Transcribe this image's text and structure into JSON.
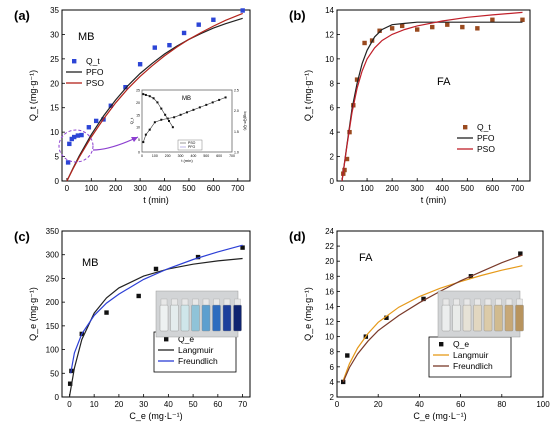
{
  "chart_data": [
    {
      "panel_label": "(a)",
      "annotation": "MB",
      "type": "scatter",
      "xlabel": "t (min)",
      "ylabel": "Q_t (mg·g⁻¹)",
      "xlim": [
        -20,
        750
      ],
      "ylim": [
        0,
        35
      ],
      "xticks": [
        0,
        100,
        200,
        300,
        400,
        500,
        600,
        700
      ],
      "yticks": [
        0,
        5,
        10,
        15,
        20,
        25,
        30,
        35
      ],
      "legend": {
        "position": "top-left",
        "entries": [
          "Q_t",
          "PFO",
          "PSO"
        ]
      },
      "series": [
        {
          "name": "Q_t",
          "kind": "points",
          "color": "#2c45d6",
          "x": [
            5,
            10,
            20,
            30,
            45,
            60,
            90,
            120,
            150,
            180,
            240,
            300,
            360,
            420,
            480,
            540,
            600,
            720
          ],
          "y": [
            3.8,
            7.6,
            8.6,
            9.0,
            9.3,
            9.4,
            11.0,
            12.3,
            12.6,
            15.4,
            19.2,
            23.9,
            27.3,
            27.8,
            30.3,
            32.0,
            33.0,
            34.9
          ]
        },
        {
          "name": "PFO",
          "kind": "line",
          "color": "#222222",
          "x": [
            0,
            25,
            50,
            100,
            150,
            200,
            250,
            300,
            350,
            400,
            450,
            500,
            550,
            600,
            650,
            720
          ],
          "y": [
            0,
            2.6,
            5.1,
            9.5,
            13.3,
            16.6,
            19.5,
            22.0,
            24.1,
            26.0,
            27.6,
            29.0,
            30.2,
            31.3,
            32.2,
            33.3
          ]
        },
        {
          "name": "PSO",
          "kind": "line",
          "color": "#b3231b",
          "x": [
            0,
            25,
            50,
            100,
            150,
            200,
            250,
            300,
            350,
            400,
            450,
            500,
            550,
            600,
            650,
            720
          ],
          "y": [
            0,
            2.5,
            4.8,
            9.0,
            12.7,
            16.0,
            18.9,
            21.4,
            23.6,
            25.6,
            27.4,
            29.0,
            30.4,
            31.7,
            32.9,
            34.3
          ]
        }
      ],
      "inset": {
        "annotation": "MB",
        "xlabel": "t (min)",
        "ylabel": "Q_t",
        "ylabel_right": "log(Qe-Qt)",
        "xlim": [
          0,
          700
        ],
        "xticks": [
          0,
          100,
          200,
          300,
          400,
          500,
          600,
          700
        ],
        "yticks_left": [
          "0",
          "5",
          "10",
          "15",
          "20",
          "25"
        ],
        "yticks_right": [
          "1.0",
          "1.5",
          "2.0",
          "2.5"
        ],
        "legend": [
          "PSO",
          "PFO"
        ],
        "series": [
          {
            "name": "left",
            "x": [
              10,
              30,
              60,
              100,
              150,
              200,
              250,
              300,
              350,
              400,
              450,
              500,
              550,
              600,
              650
            ],
            "y": [
              4,
              7,
              9,
              12,
              13,
              13.5,
              14,
              15,
              16,
              17,
              18,
              19,
              20,
              21,
              22
            ]
          },
          {
            "name": "right",
            "x": [
              10,
              30,
              60,
              90,
              120,
              150,
              180,
              210,
              240
            ],
            "y": [
              2.4,
              2.38,
              2.35,
              2.3,
              2.2,
              2.05,
              1.9,
              1.75,
              1.6
            ]
          }
        ]
      }
    },
    {
      "panel_label": "(b)",
      "annotation": "FA",
      "type": "scatter",
      "xlabel": "t (min)",
      "ylabel": "Q_t (mg·g⁻¹)",
      "xlim": [
        -20,
        750
      ],
      "ylim": [
        0,
        14
      ],
      "xticks": [
        0,
        100,
        200,
        300,
        400,
        500,
        600,
        700
      ],
      "yticks": [
        0,
        2,
        4,
        6,
        8,
        10,
        12,
        14
      ],
      "legend": {
        "position": "bottom-right",
        "entries": [
          "Q_t",
          "PFO",
          "PSO"
        ]
      },
      "series": [
        {
          "name": "Q_t",
          "kind": "points",
          "color": "#9a4a1f",
          "x": [
            5,
            10,
            20,
            30,
            45,
            60,
            90,
            120,
            150,
            200,
            240,
            300,
            360,
            420,
            480,
            540,
            600,
            720
          ],
          "y": [
            0.6,
            0.9,
            1.8,
            4.0,
            6.2,
            8.3,
            11.3,
            11.5,
            12.3,
            12.5,
            12.7,
            12.4,
            12.6,
            12.8,
            12.6,
            12.5,
            13.2,
            13.2
          ]
        },
        {
          "name": "PFO",
          "kind": "line",
          "color": "#222222",
          "x": [
            0,
            20,
            40,
            60,
            80,
            100,
            130,
            160,
            200,
            250,
            300,
            400,
            500,
            600,
            720
          ],
          "y": [
            0,
            3.0,
            5.9,
            8.0,
            9.6,
            10.7,
            11.8,
            12.4,
            12.8,
            12.9,
            13.0,
            13.0,
            13.0,
            13.0,
            13.0
          ]
        },
        {
          "name": "PSO",
          "kind": "line",
          "color": "#c0202a",
          "x": [
            0,
            20,
            40,
            60,
            80,
            100,
            130,
            160,
            200,
            250,
            300,
            400,
            500,
            600,
            720
          ],
          "y": [
            0,
            2.9,
            5.6,
            7.6,
            9.0,
            10.0,
            10.9,
            11.5,
            12.0,
            12.4,
            12.7,
            13.1,
            13.4,
            13.6,
            13.8
          ]
        }
      ]
    },
    {
      "panel_label": "(c)",
      "annotation": "MB",
      "type": "scatter",
      "xlabel": "C_e (mg·L⁻¹)",
      "ylabel": "Q_e (mg·g⁻¹)",
      "xlim": [
        -3,
        73
      ],
      "ylim": [
        0,
        350
      ],
      "xticks": [
        0,
        10,
        20,
        30,
        40,
        50,
        60,
        70
      ],
      "yticks": [
        0,
        50,
        100,
        150,
        200,
        250,
        300,
        350
      ],
      "legend": {
        "position": "bottom-right",
        "entries": [
          "Q_e",
          "Langmuir",
          "Freundlich"
        ]
      },
      "series": [
        {
          "name": "Q_e",
          "kind": "points",
          "color": "#111111",
          "x": [
            0.3,
            0.8,
            5,
            15,
            28,
            35,
            52,
            70
          ],
          "y": [
            28,
            55,
            133,
            178,
            213,
            270,
            295,
            315
          ]
        },
        {
          "name": "Langmuir",
          "kind": "line",
          "color": "#222222",
          "x": [
            0,
            2,
            5,
            10,
            15,
            20,
            30,
            40,
            50,
            60,
            70
          ],
          "y": [
            0,
            61,
            121,
            177,
            209,
            230,
            255,
            270,
            280,
            287,
            292
          ]
        },
        {
          "name": "Freundlich",
          "kind": "line",
          "color": "#2c3fd6",
          "x": [
            0.5,
            2,
            5,
            10,
            15,
            20,
            30,
            40,
            50,
            60,
            70
          ],
          "y": [
            50,
            93,
            133,
            172,
            198,
            217,
            248,
            271,
            290,
            306,
            320
          ]
        }
      ]
    },
    {
      "panel_label": "(d)",
      "annotation": "FA",
      "type": "scatter",
      "xlabel": "C_e (mg·L⁻¹)",
      "ylabel": "Q_e (mg·g⁻¹)",
      "xlim": [
        0,
        100
      ],
      "ylim": [
        2,
        24
      ],
      "xticks": [
        0,
        20,
        40,
        60,
        80,
        100
      ],
      "yticks": [
        2,
        4,
        6,
        8,
        10,
        12,
        14,
        16,
        18,
        20,
        22,
        24
      ],
      "legend": {
        "position": "bottom-right",
        "entries": [
          "Q_e",
          "Langmuir",
          "Freundlich"
        ]
      },
      "series": [
        {
          "name": "Q_e",
          "kind": "points",
          "color": "#111111",
          "x": [
            3,
            5,
            14,
            24,
            42,
            65,
            89
          ],
          "y": [
            4.0,
            7.5,
            10.0,
            12.5,
            15.0,
            18.0,
            21.0
          ]
        },
        {
          "name": "Langmuir",
          "kind": "line",
          "color": "#e69a1a",
          "x": [
            3,
            6,
            10,
            15,
            20,
            30,
            40,
            50,
            60,
            70,
            80,
            90
          ],
          "y": [
            4.2,
            6.4,
            8.5,
            10.4,
            11.9,
            13.9,
            15.3,
            16.4,
            17.3,
            18.1,
            18.8,
            19.4
          ]
        },
        {
          "name": "Freundlich",
          "kind": "line",
          "color": "#7a3a2a",
          "x": [
            3,
            6,
            10,
            15,
            20,
            30,
            40,
            50,
            60,
            70,
            80,
            90
          ],
          "y": [
            4.0,
            5.9,
            7.7,
            9.4,
            10.8,
            12.8,
            14.5,
            16.0,
            17.4,
            18.6,
            19.8,
            20.8
          ]
        }
      ]
    }
  ]
}
